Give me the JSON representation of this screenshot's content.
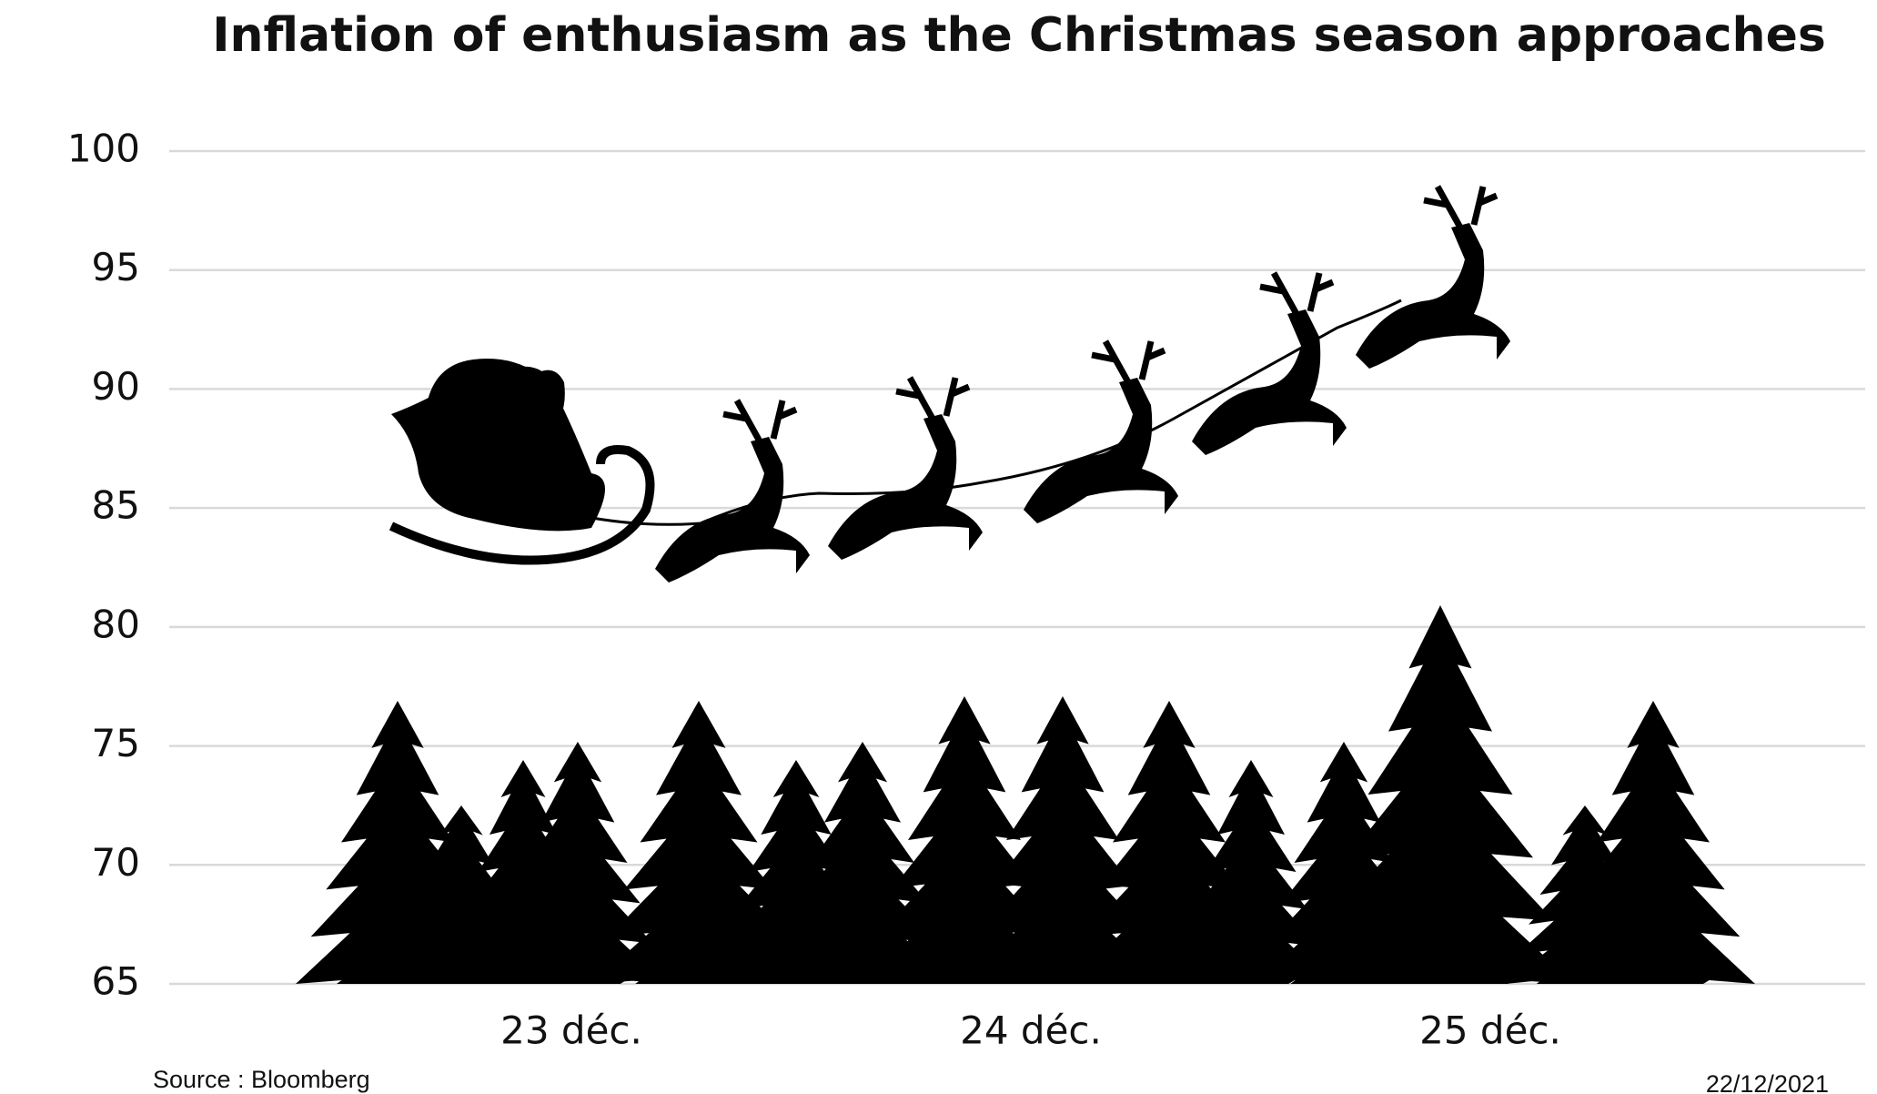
{
  "chart_data": {
    "type": "line",
    "title": "Inflation of enthusiasm as the Christmas season approaches",
    "categories": [
      "23 déc.",
      "24 déc.",
      "25 déc."
    ],
    "ylim": [
      65,
      100
    ],
    "yticks": [
      65,
      70,
      75,
      80,
      85,
      90,
      95,
      100
    ],
    "grid": true,
    "source": "Source : Bloomberg",
    "date": "22/12/2021"
  }
}
